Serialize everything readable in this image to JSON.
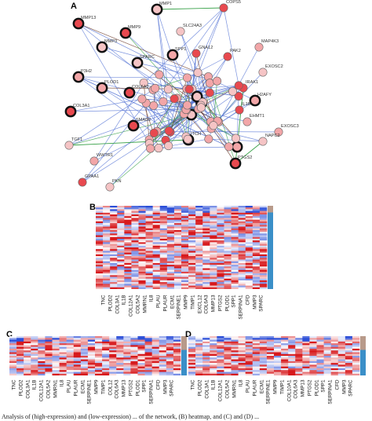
{
  "panels": {
    "a": {
      "letter": "A"
    },
    "b": {
      "letter": "B",
      "genes": [
        "TNC",
        "PLOD2",
        "COL3A1",
        "IL1B",
        "COL12A1",
        "COL5A2",
        "MMRN1",
        "IL8",
        "PLAU",
        "PLAUR",
        "ECM1",
        "SERPINE1",
        "MMP9",
        "TIMP1",
        "EXCL12",
        "COL6A3",
        "MMP13",
        "PTGS2",
        "PLOD1",
        "SPP1",
        "SERPINA1",
        "CFD",
        "MMP3",
        "SPARC"
      ]
    },
    "c": {
      "letter": "C",
      "genes": [
        "TNC",
        "PLOD2",
        "COL3A1",
        "IL1B",
        "COL12A1",
        "COL5A2",
        "MMRN1",
        "IL8",
        "PLAU",
        "PLAUR",
        "ECM1",
        "SERPINE1",
        "MMP9",
        "TIMP1",
        "COL12",
        "COL6A3",
        "MMP13",
        "PTGS2",
        "PLOD1",
        "SPP1",
        "SERPINA1",
        "CFD",
        "MMP3",
        "SPARC"
      ]
    },
    "d": {
      "letter": "D",
      "genes": [
        "TNC",
        "PLOD2",
        "COL3A1",
        "IL1B",
        "COL12A1",
        "COL5A2",
        "MMRN1",
        "IL8",
        "PLAU",
        "PLAUR",
        "ECM1",
        "SERPINE1",
        "MMP9",
        "TIMP1",
        "COL10A1",
        "COL6A3",
        "MMP13",
        "PTGS2",
        "PLOD1",
        "SPP1",
        "SERPINA1",
        "CFD",
        "MMP3",
        "SPARC"
      ]
    }
  },
  "network_labels": [
    "MMP1",
    "COPS5",
    "MMP13",
    "MMP9",
    "SLC24A3",
    "MMP3",
    "SPP1",
    "GNA12",
    "PAK2",
    "MAP4K3",
    "SPARC",
    "EXOSC2",
    "P3H2",
    "PLOD1",
    "COL6A3",
    "IRAK1",
    "H2AFY",
    "IL1B",
    "EHMT1",
    "COL3A1",
    "TGF1",
    "SMAD2",
    "EXOSC3",
    "ITCH",
    "NAPC2",
    "WWTR1",
    "PTGS2",
    "GPAA1",
    "PKN"
  ],
  "caption": "Analysis of (high-expression) and (low-expression) ... of the network, (B) heatmap, and (C) and (D) ...",
  "colors": {
    "high": "#d7191c",
    "low": "#2c4fd8",
    "mid": "#ffffff",
    "node_highlight": "#e8494f",
    "node_pink": "#f2a6a8",
    "edge_blue": "#5a78d6",
    "edge_green": "#3aa24a",
    "edge_brown": "#6b3a2a",
    "group_tan": "#b89a8a",
    "group_blue": "#3a8fc8"
  }
}
